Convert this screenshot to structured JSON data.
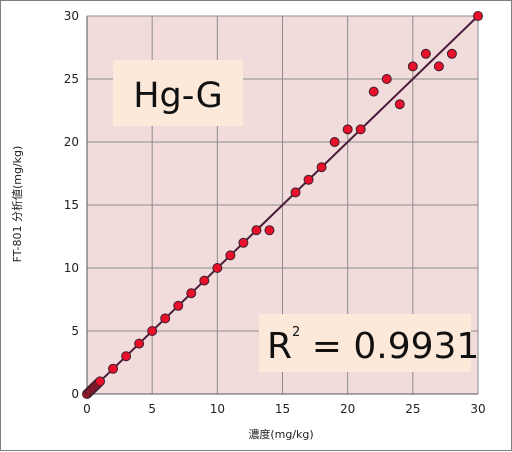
{
  "chart_data": {
    "type": "scatter",
    "xlabel": "濃度(mg/kg)",
    "ylabel": "FT-801 分析値(mg/kg)",
    "xlim": [
      0,
      30
    ],
    "ylim": [
      0,
      30
    ],
    "x_ticks": [
      "0",
      "5",
      "10",
      "15",
      "20",
      "25",
      "30"
    ],
    "y_ticks": [
      "0",
      "5",
      "10",
      "15",
      "20",
      "25",
      "30"
    ],
    "grid": true,
    "annotations": {
      "sample_label": "Hg-G",
      "r2_base": "R",
      "r2_sup": "2",
      "r2_value": " = 0.9931"
    },
    "colors": {
      "plot_bg": "#f2dcdb",
      "grid": "#8c8c8c",
      "marker_fill": "#e8102a",
      "marker_edge": "#3c1f2e",
      "trend_line": "#4a1c3a",
      "label_box": "#fde9d9"
    },
    "trendline": {
      "x": [
        0,
        30
      ],
      "y": [
        0,
        30
      ]
    },
    "points": [
      [
        0,
        0
      ],
      [
        0.1,
        0.1
      ],
      [
        0.2,
        0.2
      ],
      [
        0.3,
        0.3
      ],
      [
        0.4,
        0.4
      ],
      [
        0.5,
        0.5
      ],
      [
        0.6,
        0.6
      ],
      [
        0.7,
        0.7
      ],
      [
        0.8,
        0.8
      ],
      [
        0.9,
        0.9
      ],
      [
        1,
        1
      ],
      [
        2,
        2
      ],
      [
        3,
        3
      ],
      [
        4,
        4
      ],
      [
        5,
        5
      ],
      [
        6,
        6
      ],
      [
        7,
        7
      ],
      [
        8,
        8
      ],
      [
        9,
        9
      ],
      [
        10,
        10
      ],
      [
        11,
        11
      ],
      [
        12,
        12
      ],
      [
        13,
        13
      ],
      [
        14,
        13
      ],
      [
        16,
        16
      ],
      [
        17,
        17
      ],
      [
        18,
        18
      ],
      [
        19,
        20
      ],
      [
        20,
        21
      ],
      [
        21,
        21
      ],
      [
        22,
        24
      ],
      [
        23,
        25
      ],
      [
        24,
        23
      ],
      [
        25,
        26
      ],
      [
        26,
        27
      ],
      [
        27,
        26
      ],
      [
        28,
        27
      ],
      [
        30,
        30
      ]
    ]
  }
}
